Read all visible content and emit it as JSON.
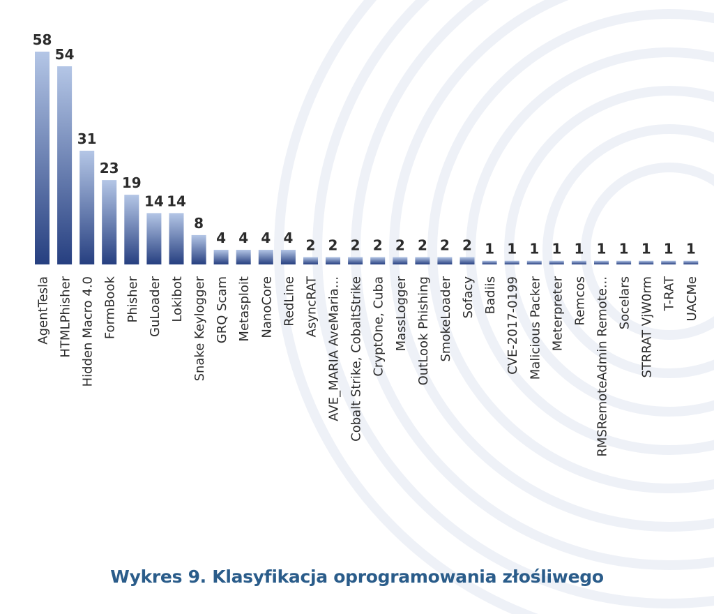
{
  "chart_data": {
    "type": "bar",
    "title": "Wykres 9. Klasyfikacja oprogramowania złośliwego",
    "xlabel": "",
    "ylabel": "",
    "ylim": [
      0,
      58
    ],
    "grid": false,
    "legend": "none",
    "categories": [
      "AgentTesla",
      "HTMLPhisher",
      "Hidden Macro 4.0",
      "FormBook",
      "Phisher",
      "GuLoader",
      "Lokibot",
      "Snake Keylogger",
      "GRQ Scam",
      "Metasploit",
      "NanoCore",
      "RedLine",
      "AsyncRAT",
      "AVE_MARIA AveMaria...",
      "Cobalt Strike, CobaltStrike",
      "CryptOne, Cuba",
      "MassLogger",
      "OutLook Phishing",
      "SmokeLoader",
      "Sofacy",
      "Badiis",
      "CVE-2017-0199",
      "Malicious Packer",
      "Meterpreter",
      "Remcos",
      "RMSRemoteAdmin Remote...",
      "Socelars",
      "STRRAT VjW0rm",
      "T-RAT",
      "UACMe"
    ],
    "values": [
      58,
      54,
      31,
      23,
      19,
      14,
      14,
      8,
      4,
      4,
      4,
      4,
      2,
      2,
      2,
      2,
      2,
      2,
      2,
      2,
      1,
      1,
      1,
      1,
      1,
      1,
      1,
      1,
      1,
      1
    ],
    "colors": {
      "bar_top": "#b4c6e6",
      "bar_bottom": "#263f80",
      "text": "#2b2b2b",
      "caption": "#2a5c8a",
      "background_arcs": "#eef1f7"
    }
  }
}
